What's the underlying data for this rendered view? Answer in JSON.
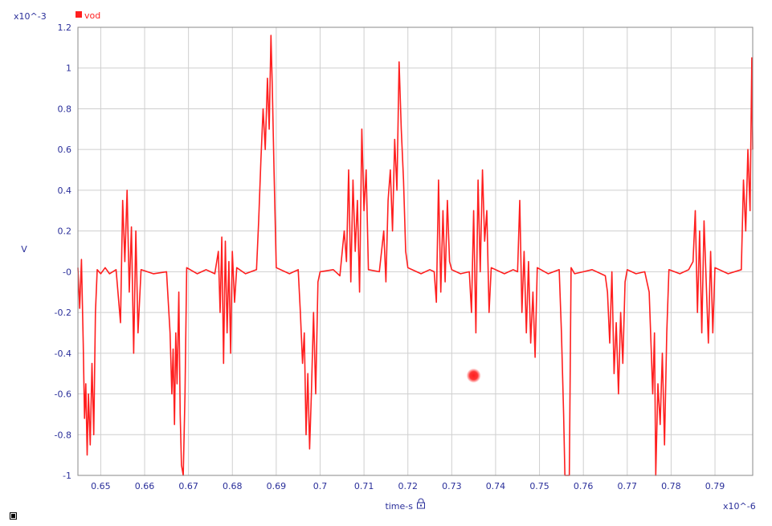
{
  "yexp_label": "x10^-3",
  "xexp_label": "x10^-6",
  "ylabel": "V",
  "xlabel": "time-s",
  "icons": {
    "lock": "lock-icon",
    "corner": "resize-corner-icon",
    "cursor": "cursor-marker"
  },
  "colors": {
    "trace": "#ff1f1f",
    "grid": "#cfcfcf",
    "axis_text": "#2a2f9a",
    "frame": "#8a8a8a"
  },
  "chart_data": {
    "type": "line",
    "xlim": [
      0.6448,
      0.7986
    ],
    "ylim": [
      -1.0,
      1.2
    ],
    "grid": true,
    "legend": "top-left",
    "xticks": [
      0.65,
      0.66,
      0.67,
      0.68,
      0.69,
      0.7,
      0.71,
      0.72,
      0.73,
      0.74,
      0.75,
      0.76,
      0.77,
      0.78,
      0.79
    ],
    "xtick_labels": [
      "0.65",
      "0.66",
      "0.67",
      "0.68",
      "0.69",
      "0.7",
      "0.71",
      "0.72",
      "0.73",
      "0.74",
      "0.75",
      "0.76",
      "0.77",
      "0.78",
      "0.79"
    ],
    "yticks": [
      -1.0,
      -0.8,
      -0.6,
      -0.4,
      -0.2,
      0.0,
      0.2,
      0.4,
      0.6,
      0.8,
      1.0,
      1.2
    ],
    "ytick_labels": [
      "-1",
      "-0.8",
      "-0.6",
      "-0.4",
      "-0.2",
      "-0",
      "0.2",
      "0.4",
      "0.6",
      "0.8",
      "1",
      "1.2"
    ],
    "series": [
      {
        "name": "vod",
        "color": "#ff1f1f",
        "points": [
          [
            0.6448,
            0.02
          ],
          [
            0.6452,
            -0.18
          ],
          [
            0.6456,
            0.06
          ],
          [
            0.646,
            -0.35
          ],
          [
            0.6463,
            -0.72
          ],
          [
            0.6466,
            -0.55
          ],
          [
            0.6469,
            -0.9
          ],
          [
            0.6472,
            -0.6
          ],
          [
            0.6476,
            -0.85
          ],
          [
            0.648,
            -0.45
          ],
          [
            0.6484,
            -0.8
          ],
          [
            0.6488,
            -0.2
          ],
          [
            0.6492,
            0.01
          ],
          [
            0.65,
            -0.01
          ],
          [
            0.651,
            0.02
          ],
          [
            0.652,
            -0.01
          ],
          [
            0.6535,
            0.01
          ],
          [
            0.6545,
            -0.25
          ],
          [
            0.655,
            0.35
          ],
          [
            0.6555,
            0.05
          ],
          [
            0.656,
            0.4
          ],
          [
            0.6565,
            -0.1
          ],
          [
            0.657,
            0.22
          ],
          [
            0.6575,
            -0.4
          ],
          [
            0.658,
            0.2
          ],
          [
            0.6585,
            -0.3
          ],
          [
            0.6592,
            0.01
          ],
          [
            0.662,
            -0.01
          ],
          [
            0.665,
            0.0
          ],
          [
            0.6658,
            -0.3
          ],
          [
            0.6662,
            -0.6
          ],
          [
            0.6665,
            -0.38
          ],
          [
            0.6668,
            -0.75
          ],
          [
            0.6671,
            -0.3
          ],
          [
            0.6674,
            -0.55
          ],
          [
            0.6678,
            -0.1
          ],
          [
            0.6681,
            -0.7
          ],
          [
            0.6684,
            -0.95
          ],
          [
            0.6688,
            -1.0
          ],
          [
            0.6692,
            -0.6
          ],
          [
            0.6696,
            0.02
          ],
          [
            0.672,
            -0.01
          ],
          [
            0.674,
            0.01
          ],
          [
            0.676,
            -0.01
          ],
          [
            0.6768,
            0.1
          ],
          [
            0.6772,
            -0.2
          ],
          [
            0.6776,
            0.17
          ],
          [
            0.678,
            -0.45
          ],
          [
            0.6784,
            0.15
          ],
          [
            0.6788,
            -0.3
          ],
          [
            0.6792,
            0.05
          ],
          [
            0.6796,
            -0.4
          ],
          [
            0.68,
            0.1
          ],
          [
            0.6805,
            -0.15
          ],
          [
            0.681,
            0.02
          ],
          [
            0.683,
            -0.01
          ],
          [
            0.6855,
            0.01
          ],
          [
            0.686,
            0.25
          ],
          [
            0.6865,
            0.55
          ],
          [
            0.687,
            0.8
          ],
          [
            0.6875,
            0.6
          ],
          [
            0.688,
            0.95
          ],
          [
            0.6884,
            0.7
          ],
          [
            0.6888,
            1.16
          ],
          [
            0.6891,
            0.9
          ],
          [
            0.6895,
            0.5
          ],
          [
            0.69,
            0.02
          ],
          [
            0.693,
            -0.01
          ],
          [
            0.695,
            0.01
          ],
          [
            0.6955,
            -0.2
          ],
          [
            0.696,
            -0.45
          ],
          [
            0.6964,
            -0.3
          ],
          [
            0.6968,
            -0.8
          ],
          [
            0.6972,
            -0.5
          ],
          [
            0.6976,
            -0.87
          ],
          [
            0.698,
            -0.6
          ],
          [
            0.6985,
            -0.2
          ],
          [
            0.699,
            -0.6
          ],
          [
            0.6995,
            -0.05
          ],
          [
            0.7,
            0.0
          ],
          [
            0.703,
            0.01
          ],
          [
            0.7045,
            -0.02
          ],
          [
            0.7055,
            0.2
          ],
          [
            0.706,
            0.05
          ],
          [
            0.7065,
            0.5
          ],
          [
            0.707,
            -0.05
          ],
          [
            0.7075,
            0.45
          ],
          [
            0.708,
            0.1
          ],
          [
            0.7085,
            0.35
          ],
          [
            0.709,
            -0.1
          ],
          [
            0.7095,
            0.7
          ],
          [
            0.71,
            0.3
          ],
          [
            0.7105,
            0.5
          ],
          [
            0.711,
            0.01
          ],
          [
            0.7135,
            0.0
          ],
          [
            0.7145,
            0.2
          ],
          [
            0.715,
            -0.05
          ],
          [
            0.7155,
            0.35
          ],
          [
            0.716,
            0.5
          ],
          [
            0.7165,
            0.2
          ],
          [
            0.717,
            0.65
          ],
          [
            0.7175,
            0.4
          ],
          [
            0.718,
            1.03
          ],
          [
            0.7185,
            0.7
          ],
          [
            0.719,
            0.45
          ],
          [
            0.7195,
            0.1
          ],
          [
            0.72,
            0.02
          ],
          [
            0.723,
            -0.01
          ],
          [
            0.725,
            0.01
          ],
          [
            0.726,
            0.0
          ],
          [
            0.7265,
            -0.15
          ],
          [
            0.727,
            0.45
          ],
          [
            0.7275,
            -0.1
          ],
          [
            0.728,
            0.3
          ],
          [
            0.7285,
            -0.05
          ],
          [
            0.729,
            0.35
          ],
          [
            0.7295,
            0.05
          ],
          [
            0.73,
            0.01
          ],
          [
            0.732,
            -0.01
          ],
          [
            0.734,
            0.0
          ],
          [
            0.7345,
            -0.2
          ],
          [
            0.735,
            0.3
          ],
          [
            0.7355,
            -0.3
          ],
          [
            0.736,
            0.45
          ],
          [
            0.7365,
            0.0
          ],
          [
            0.737,
            0.5
          ],
          [
            0.7375,
            0.15
          ],
          [
            0.738,
            0.3
          ],
          [
            0.7385,
            -0.2
          ],
          [
            0.739,
            0.02
          ],
          [
            0.742,
            -0.01
          ],
          [
            0.744,
            0.01
          ],
          [
            0.745,
            0.0
          ],
          [
            0.7455,
            0.35
          ],
          [
            0.746,
            -0.2
          ],
          [
            0.7465,
            0.1
          ],
          [
            0.747,
            -0.3
          ],
          [
            0.7475,
            0.05
          ],
          [
            0.748,
            -0.35
          ],
          [
            0.7485,
            -0.1
          ],
          [
            0.749,
            -0.42
          ],
          [
            0.7495,
            0.02
          ],
          [
            0.752,
            -0.01
          ],
          [
            0.7545,
            0.01
          ],
          [
            0.755,
            -0.3
          ],
          [
            0.7555,
            -0.7
          ],
          [
            0.7558,
            -1.0
          ],
          [
            0.7568,
            -1.0
          ],
          [
            0.7572,
            0.02
          ],
          [
            0.758,
            -0.01
          ],
          [
            0.76,
            0.0
          ],
          [
            0.762,
            0.01
          ],
          [
            0.765,
            -0.02
          ],
          [
            0.7655,
            -0.1
          ],
          [
            0.766,
            -0.35
          ],
          [
            0.7665,
            0.0
          ],
          [
            0.767,
            -0.5
          ],
          [
            0.7675,
            -0.25
          ],
          [
            0.768,
            -0.6
          ],
          [
            0.7685,
            -0.2
          ],
          [
            0.769,
            -0.45
          ],
          [
            0.7695,
            -0.05
          ],
          [
            0.77,
            0.01
          ],
          [
            0.772,
            -0.01
          ],
          [
            0.774,
            0.0
          ],
          [
            0.775,
            -0.1
          ],
          [
            0.7755,
            -0.4
          ],
          [
            0.7758,
            -0.6
          ],
          [
            0.7762,
            -0.3
          ],
          [
            0.7765,
            -1.0
          ],
          [
            0.777,
            -0.55
          ],
          [
            0.7775,
            -0.75
          ],
          [
            0.778,
            -0.4
          ],
          [
            0.7785,
            -0.85
          ],
          [
            0.779,
            -0.3
          ],
          [
            0.7795,
            0.01
          ],
          [
            0.782,
            -0.01
          ],
          [
            0.784,
            0.01
          ],
          [
            0.785,
            0.05
          ],
          [
            0.7855,
            0.3
          ],
          [
            0.786,
            -0.2
          ],
          [
            0.7865,
            0.2
          ],
          [
            0.787,
            -0.3
          ],
          [
            0.7875,
            0.25
          ],
          [
            0.788,
            -0.05
          ],
          [
            0.7885,
            -0.35
          ],
          [
            0.789,
            0.1
          ],
          [
            0.7895,
            -0.3
          ],
          [
            0.79,
            0.02
          ],
          [
            0.793,
            -0.01
          ],
          [
            0.796,
            0.01
          ],
          [
            0.7965,
            0.45
          ],
          [
            0.797,
            0.2
          ],
          [
            0.7975,
            0.6
          ],
          [
            0.798,
            0.3
          ],
          [
            0.7984,
            1.05
          ],
          [
            0.7986,
            0.6
          ]
        ]
      }
    ],
    "annotations": [
      {
        "type": "marker",
        "x": 0.735,
        "y": -0.51
      }
    ]
  }
}
